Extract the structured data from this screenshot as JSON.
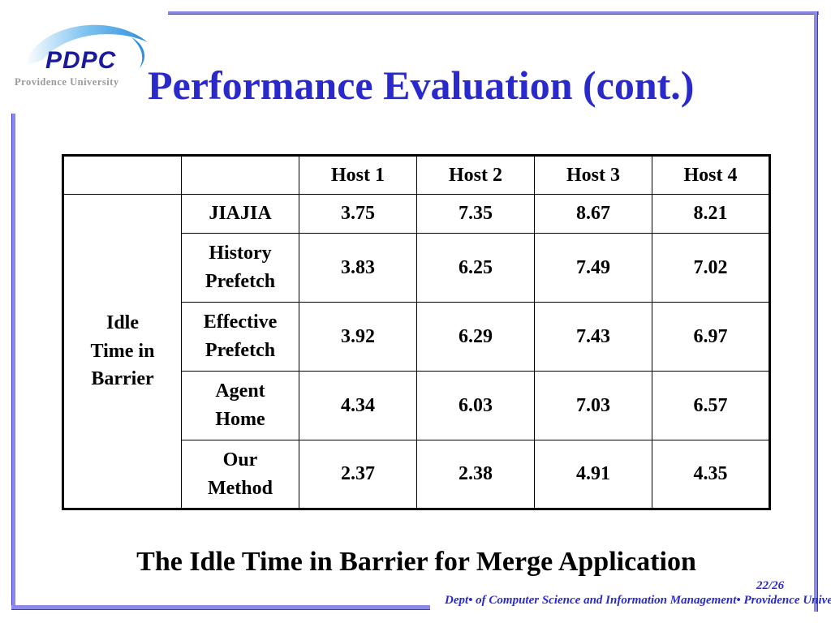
{
  "logo": {
    "text": "PDPC",
    "subtitle": "Providence University"
  },
  "slide": {
    "title": "Performance Evaluation (cont.)",
    "caption": "The Idle Time in Barrier for Merge Application",
    "page_number": "22/26",
    "footer": "Dept• of Computer Science and Information Management• Providence University"
  },
  "table": {
    "headers": [
      "",
      "",
      "Host 1",
      "Host 2",
      "Host 3",
      "Host 4"
    ],
    "group_label_lines": [
      "Idle",
      "Time in",
      "Barrier"
    ],
    "rows": [
      {
        "method_lines": [
          "JIAJIA"
        ],
        "values": [
          "3.75",
          "7.35",
          "8.67",
          "8.21"
        ]
      },
      {
        "method_lines": [
          "History",
          "Prefetch"
        ],
        "values": [
          "3.83",
          "6.25",
          "7.49",
          "7.02"
        ]
      },
      {
        "method_lines": [
          "Effective",
          "Prefetch"
        ],
        "values": [
          "3.92",
          "6.29",
          "7.43",
          "6.97"
        ]
      },
      {
        "method_lines": [
          "Agent",
          "Home"
        ],
        "values": [
          "4.34",
          "6.03",
          "7.03",
          "6.57"
        ]
      },
      {
        "method_lines": [
          "Our",
          "Method"
        ],
        "values": [
          "2.37",
          "2.38",
          "4.91",
          "4.35"
        ]
      }
    ]
  }
}
